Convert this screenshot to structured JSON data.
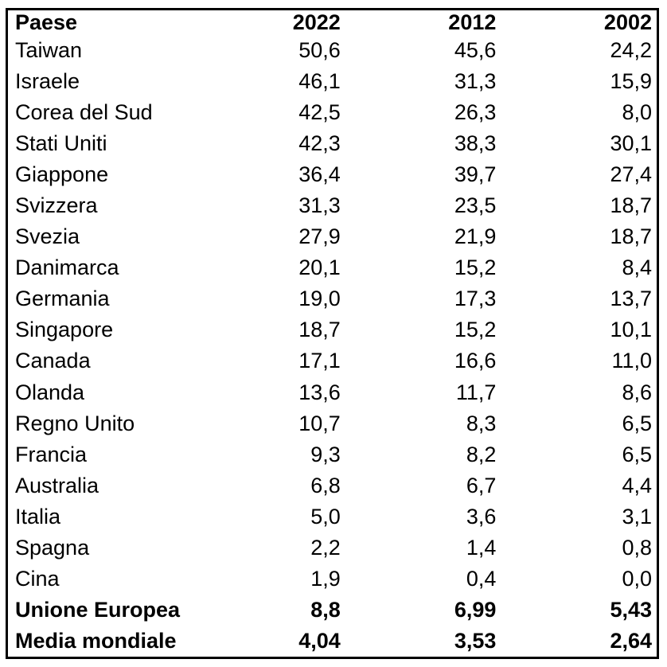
{
  "colors": {
    "background": "#ffffff",
    "border": "#000000",
    "text": "#000000"
  },
  "chart_data": {
    "type": "table",
    "decimal_separator": ",",
    "columns": [
      "Paese",
      "2022",
      "2012",
      "2002"
    ],
    "rows": [
      {
        "paese": "Taiwan",
        "y2022": "50,6",
        "y2012": "45,6",
        "y2002": "24,2",
        "bold": false
      },
      {
        "paese": "Israele",
        "y2022": "46,1",
        "y2012": "31,3",
        "y2002": "15,9",
        "bold": false
      },
      {
        "paese": "Corea del Sud",
        "y2022": "42,5",
        "y2012": "26,3",
        "y2002": "8,0",
        "bold": false
      },
      {
        "paese": "Stati Uniti",
        "y2022": "42,3",
        "y2012": "38,3",
        "y2002": "30,1",
        "bold": false
      },
      {
        "paese": "Giappone",
        "y2022": "36,4",
        "y2012": "39,7",
        "y2002": "27,4",
        "bold": false
      },
      {
        "paese": "Svizzera",
        "y2022": "31,3",
        "y2012": "23,5",
        "y2002": "18,7",
        "bold": false
      },
      {
        "paese": "Svezia",
        "y2022": "27,9",
        "y2012": "21,9",
        "y2002": "18,7",
        "bold": false
      },
      {
        "paese": "Danimarca",
        "y2022": "20,1",
        "y2012": "15,2",
        "y2002": "8,4",
        "bold": false
      },
      {
        "paese": "Germania",
        "y2022": "19,0",
        "y2012": "17,3",
        "y2002": "13,7",
        "bold": false
      },
      {
        "paese": "Singapore",
        "y2022": "18,7",
        "y2012": "15,2",
        "y2002": "10,1",
        "bold": false
      },
      {
        "paese": "Canada",
        "y2022": "17,1",
        "y2012": "16,6",
        "y2002": "11,0",
        "bold": false
      },
      {
        "paese": "Olanda",
        "y2022": "13,6",
        "y2012": "11,7",
        "y2002": "8,6",
        "bold": false
      },
      {
        "paese": "Regno Unito",
        "y2022": "10,7",
        "y2012": "8,3",
        "y2002": "6,5",
        "bold": false
      },
      {
        "paese": "Francia",
        "y2022": "9,3",
        "y2012": "8,2",
        "y2002": "6,5",
        "bold": false
      },
      {
        "paese": "Australia",
        "y2022": "6,8",
        "y2012": "6,7",
        "y2002": "4,4",
        "bold": false
      },
      {
        "paese": "Italia",
        "y2022": "5,0",
        "y2012": "3,6",
        "y2002": "3,1",
        "bold": false
      },
      {
        "paese": "Spagna",
        "y2022": "2,2",
        "y2012": "1,4",
        "y2002": "0,8",
        "bold": false
      },
      {
        "paese": "Cina",
        "y2022": "1,9",
        "y2012": "0,4",
        "y2002": "0,0",
        "bold": false
      },
      {
        "paese": "Unione Europea",
        "y2022": "8,8",
        "y2012": "6,99",
        "y2002": "5,43",
        "bold": true
      },
      {
        "paese": "Media mondiale",
        "y2022": "4,04",
        "y2012": "3,53",
        "y2002": "2,64",
        "bold": true
      }
    ]
  }
}
